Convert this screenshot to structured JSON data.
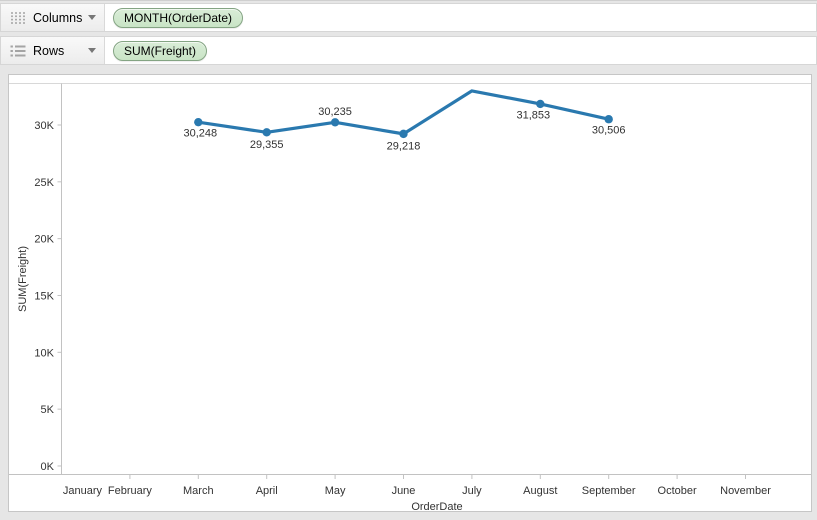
{
  "shelves": {
    "columns": {
      "label": "Columns",
      "pill": "MONTH(OrderDate)"
    },
    "rows": {
      "label": "Rows",
      "pill": "SUM(Freight)"
    }
  },
  "colors": {
    "pill_fill": "#cde8cb",
    "pill_border": "#84a483",
    "series_line": "#2a79af",
    "axis_line": "#c2c2c2",
    "pane_top_line": "#d8d8d8",
    "tick_text": "#333333",
    "data_label_text": "#323232"
  },
  "chart_data": {
    "type": "line",
    "title": "",
    "xlabel": "OrderDate",
    "ylabel": "SUM(Freight)",
    "categories": [
      "January",
      "February",
      "March",
      "April",
      "May",
      "June",
      "July",
      "August",
      "September",
      "October",
      "November"
    ],
    "series": [
      {
        "name": "SUM(Freight)",
        "points": [
          {
            "category": "March",
            "value": 30248,
            "label": "30,248",
            "label_offset": [
              2,
              11
            ]
          },
          {
            "category": "April",
            "value": 29355,
            "label": "29,355",
            "label_offset": [
              0,
              12
            ]
          },
          {
            "category": "May",
            "value": 30235,
            "label": "30,235",
            "label_offset": [
              0,
              -11
            ]
          },
          {
            "category": "June",
            "value": 29218,
            "label": "29,218",
            "label_offset": [
              0,
              12
            ]
          },
          {
            "category": "July",
            "value": 33000,
            "label": null,
            "label_offset": [
              0,
              0
            ]
          },
          {
            "category": "August",
            "value": 31853,
            "label": "31,853",
            "label_offset": [
              -7,
              11
            ]
          },
          {
            "category": "September",
            "value": 30506,
            "label": "30,506",
            "label_offset": [
              0,
              11
            ]
          }
        ]
      }
    ],
    "yticks": [
      {
        "value": 0,
        "label": "0K"
      },
      {
        "value": 5000,
        "label": "5K"
      },
      {
        "value": 10000,
        "label": "10K"
      },
      {
        "value": 15000,
        "label": "15K"
      },
      {
        "value": 20000,
        "label": "20K"
      },
      {
        "value": 25000,
        "label": "25K"
      },
      {
        "value": 30000,
        "label": "30K"
      }
    ],
    "ylim": [
      -750,
      33650
    ],
    "grid": false,
    "legend": null
  }
}
